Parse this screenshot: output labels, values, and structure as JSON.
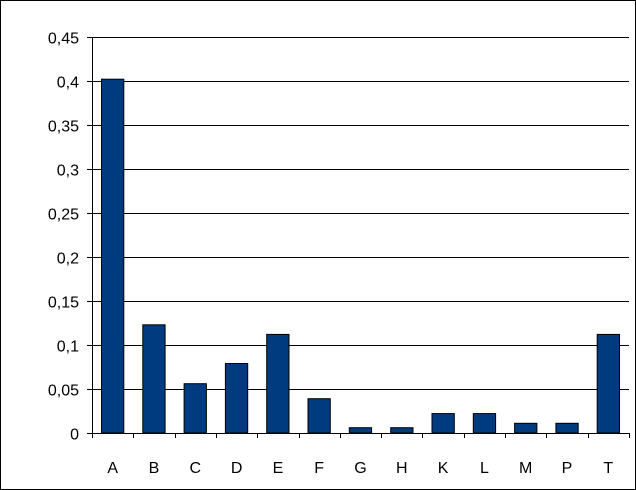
{
  "chart_data": {
    "type": "bar",
    "title": "",
    "xlabel": "",
    "ylabel": "",
    "categories": [
      "A",
      "B",
      "C",
      "D",
      "E",
      "F",
      "G",
      "H",
      "K",
      "L",
      "M",
      "P",
      "T"
    ],
    "values": [
      0.402,
      0.123,
      0.056,
      0.079,
      0.112,
      0.039,
      0.006,
      0.006,
      0.022,
      0.022,
      0.011,
      0.011,
      0.112
    ],
    "ylim": [
      0,
      0.45
    ],
    "yticks": [
      0,
      0.05,
      0.1,
      0.15,
      0.2,
      0.25,
      0.3,
      0.35,
      0.4,
      0.45
    ],
    "ytick_labels": [
      "0",
      "0,05",
      "0,1",
      "0,15",
      "0,2",
      "0,25",
      "0,3",
      "0,35",
      "0,4",
      "0,45"
    ],
    "grid": true,
    "legend": "none",
    "bar_color": "#003b7f"
  }
}
